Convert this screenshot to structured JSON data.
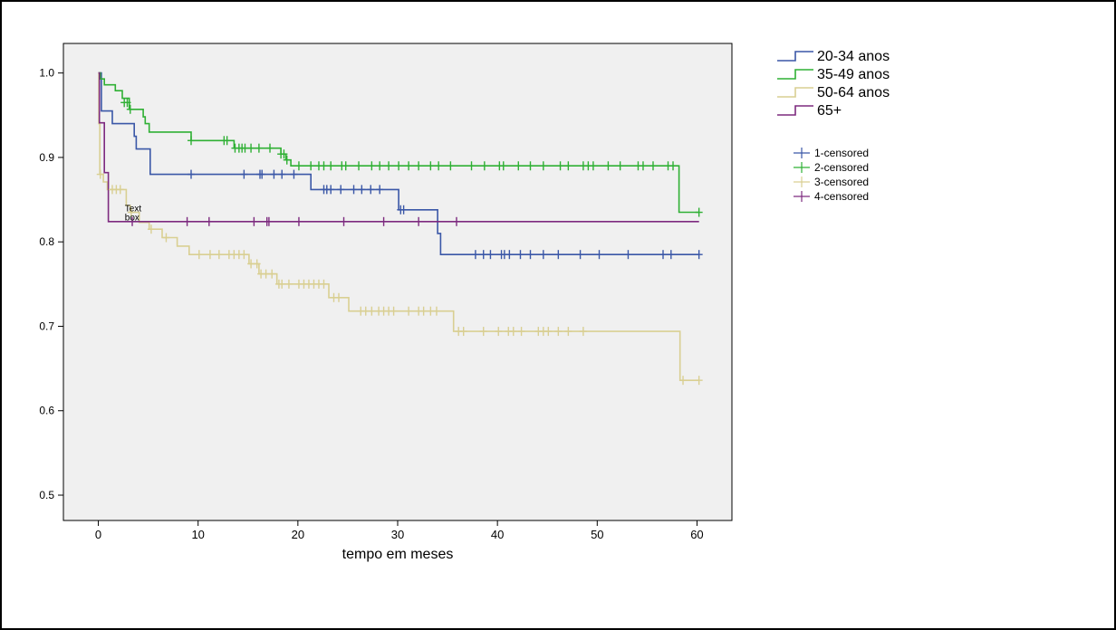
{
  "chart_data": {
    "type": "line",
    "step": true,
    "title": "",
    "xlabel": "tempo em meses",
    "ylabel": "",
    "xlim": [
      -3.5,
      63.5
    ],
    "ylim": [
      0.47,
      1.035
    ],
    "xticks": [
      0,
      10,
      20,
      30,
      40,
      50,
      60
    ],
    "yticks": [
      0.5,
      0.6,
      0.7,
      0.8,
      0.9,
      1.0
    ],
    "ytick_labels": [
      "0.5",
      "0.6",
      "0.7",
      "0.8",
      "0.9",
      "1.0"
    ],
    "grid": false,
    "plot_background": "#f0f0f0",
    "legend_position": "top-right outside plot",
    "annotation": {
      "text_lines": [
        "Text",
        "box"
      ],
      "x": 3.2,
      "y": 0.823
    },
    "series": [
      {
        "name": "20-34 anos",
        "censor_label": "1-censored",
        "color": "#3a57a7",
        "steps": [
          [
            0,
            1.0
          ],
          [
            0.3,
            0.955
          ],
          [
            1.4,
            0.94
          ],
          [
            3.6,
            0.925
          ],
          [
            3.8,
            0.91
          ],
          [
            5.2,
            0.88
          ],
          [
            21.3,
            0.862
          ],
          [
            30.1,
            0.838
          ],
          [
            34,
            0.81
          ],
          [
            34.3,
            0.785
          ],
          [
            60.2,
            0.785
          ]
        ],
        "censored": [
          [
            9.3,
            0.88
          ],
          [
            14.6,
            0.88
          ],
          [
            16.2,
            0.88
          ],
          [
            16.4,
            0.88
          ],
          [
            17.6,
            0.88
          ],
          [
            18.4,
            0.88
          ],
          [
            19.6,
            0.88
          ],
          [
            22.6,
            0.862
          ],
          [
            22.9,
            0.862
          ],
          [
            23.3,
            0.862
          ],
          [
            24.3,
            0.862
          ],
          [
            25.6,
            0.862
          ],
          [
            26.4,
            0.862
          ],
          [
            27.3,
            0.862
          ],
          [
            28.2,
            0.862
          ],
          [
            30.3,
            0.838
          ],
          [
            30.6,
            0.838
          ],
          [
            37.8,
            0.785
          ],
          [
            38.6,
            0.785
          ],
          [
            39.3,
            0.785
          ],
          [
            40.4,
            0.785
          ],
          [
            40.7,
            0.785
          ],
          [
            41.2,
            0.785
          ],
          [
            42.3,
            0.785
          ],
          [
            43.3,
            0.785
          ],
          [
            44.6,
            0.785
          ],
          [
            46.1,
            0.785
          ],
          [
            48.3,
            0.785
          ],
          [
            50.2,
            0.785
          ],
          [
            53.1,
            0.785
          ],
          [
            56.6,
            0.785
          ],
          [
            57.4,
            0.785
          ],
          [
            60.2,
            0.785
          ]
        ]
      },
      {
        "name": "35-49 anos",
        "censor_label": "2-censored",
        "color": "#2fb034",
        "steps": [
          [
            0,
            1.0
          ],
          [
            0.2,
            0.993
          ],
          [
            0.6,
            0.986
          ],
          [
            1.7,
            0.979
          ],
          [
            2.4,
            0.97
          ],
          [
            3.1,
            0.957
          ],
          [
            4.5,
            0.948
          ],
          [
            4.7,
            0.94
          ],
          [
            5.1,
            0.93
          ],
          [
            9.3,
            0.92
          ],
          [
            13.6,
            0.911
          ],
          [
            18.3,
            0.904
          ],
          [
            18.8,
            0.897
          ],
          [
            19.3,
            0.89
          ],
          [
            58.2,
            0.835
          ],
          [
            60.2,
            0.835
          ]
        ],
        "censored": [
          [
            2.6,
            0.965
          ],
          [
            2.9,
            0.965
          ],
          [
            3.2,
            0.957
          ],
          [
            9.3,
            0.92
          ],
          [
            12.6,
            0.92
          ],
          [
            12.9,
            0.92
          ],
          [
            13.7,
            0.911
          ],
          [
            14.1,
            0.911
          ],
          [
            14.4,
            0.911
          ],
          [
            14.7,
            0.911
          ],
          [
            15.3,
            0.911
          ],
          [
            16.1,
            0.911
          ],
          [
            17.2,
            0.911
          ],
          [
            18.3,
            0.904
          ],
          [
            18.6,
            0.904
          ],
          [
            18.9,
            0.897
          ],
          [
            20.1,
            0.89
          ],
          [
            21.3,
            0.89
          ],
          [
            22.1,
            0.89
          ],
          [
            22.6,
            0.89
          ],
          [
            23.3,
            0.89
          ],
          [
            24.4,
            0.89
          ],
          [
            24.8,
            0.89
          ],
          [
            26.1,
            0.89
          ],
          [
            27.4,
            0.89
          ],
          [
            28.2,
            0.89
          ],
          [
            29.1,
            0.89
          ],
          [
            30.1,
            0.89
          ],
          [
            31.1,
            0.89
          ],
          [
            32.1,
            0.89
          ],
          [
            33.3,
            0.89
          ],
          [
            34.1,
            0.89
          ],
          [
            35.3,
            0.89
          ],
          [
            37.4,
            0.89
          ],
          [
            38.7,
            0.89
          ],
          [
            40.2,
            0.89
          ],
          [
            40.6,
            0.89
          ],
          [
            42.1,
            0.89
          ],
          [
            43.3,
            0.89
          ],
          [
            44.6,
            0.89
          ],
          [
            46.3,
            0.89
          ],
          [
            47.1,
            0.89
          ],
          [
            48.6,
            0.89
          ],
          [
            49.1,
            0.89
          ],
          [
            49.6,
            0.89
          ],
          [
            51.1,
            0.89
          ],
          [
            52.3,
            0.89
          ],
          [
            54.1,
            0.89
          ],
          [
            54.6,
            0.89
          ],
          [
            55.6,
            0.89
          ],
          [
            57.1,
            0.89
          ],
          [
            57.6,
            0.89
          ],
          [
            60.2,
            0.835
          ]
        ]
      },
      {
        "name": "50-64 anos",
        "censor_label": "3-censored",
        "color": "#d9cf92",
        "steps": [
          [
            0,
            1.0
          ],
          [
            0.05,
            0.94
          ],
          [
            0.15,
            0.88
          ],
          [
            0.5,
            0.871
          ],
          [
            0.9,
            0.862
          ],
          [
            2.8,
            0.843
          ],
          [
            3.2,
            0.835
          ],
          [
            4.1,
            0.823
          ],
          [
            5.1,
            0.815
          ],
          [
            6.4,
            0.805
          ],
          [
            7.9,
            0.795
          ],
          [
            9.1,
            0.785
          ],
          [
            15.1,
            0.774
          ],
          [
            16.1,
            0.762
          ],
          [
            17.9,
            0.75
          ],
          [
            23.1,
            0.734
          ],
          [
            25.1,
            0.718
          ],
          [
            35.6,
            0.694
          ],
          [
            58.3,
            0.636
          ],
          [
            60.2,
            0.636
          ]
        ],
        "censored": [
          [
            0.2,
            0.88
          ],
          [
            1.4,
            0.862
          ],
          [
            1.8,
            0.862
          ],
          [
            2.2,
            0.862
          ],
          [
            3.3,
            0.835
          ],
          [
            5.3,
            0.815
          ],
          [
            6.8,
            0.805
          ],
          [
            10.1,
            0.785
          ],
          [
            11.2,
            0.785
          ],
          [
            12.1,
            0.785
          ],
          [
            13.1,
            0.785
          ],
          [
            13.6,
            0.785
          ],
          [
            14.1,
            0.785
          ],
          [
            14.6,
            0.785
          ],
          [
            15.3,
            0.774
          ],
          [
            15.9,
            0.774
          ],
          [
            16.3,
            0.762
          ],
          [
            16.8,
            0.762
          ],
          [
            17.4,
            0.762
          ],
          [
            18.1,
            0.75
          ],
          [
            18.4,
            0.75
          ],
          [
            19.1,
            0.75
          ],
          [
            20.1,
            0.75
          ],
          [
            20.6,
            0.75
          ],
          [
            21.1,
            0.75
          ],
          [
            21.6,
            0.75
          ],
          [
            22.1,
            0.75
          ],
          [
            22.6,
            0.75
          ],
          [
            23.6,
            0.734
          ],
          [
            24.1,
            0.734
          ],
          [
            26.3,
            0.718
          ],
          [
            26.8,
            0.718
          ],
          [
            27.4,
            0.718
          ],
          [
            28.1,
            0.718
          ],
          [
            28.6,
            0.718
          ],
          [
            29.1,
            0.718
          ],
          [
            29.6,
            0.718
          ],
          [
            31.1,
            0.718
          ],
          [
            32.1,
            0.718
          ],
          [
            32.6,
            0.718
          ],
          [
            33.3,
            0.718
          ],
          [
            33.9,
            0.718
          ],
          [
            36.1,
            0.694
          ],
          [
            36.6,
            0.694
          ],
          [
            38.6,
            0.694
          ],
          [
            40.1,
            0.694
          ],
          [
            41.1,
            0.694
          ],
          [
            41.6,
            0.694
          ],
          [
            42.4,
            0.694
          ],
          [
            44.1,
            0.694
          ],
          [
            44.6,
            0.694
          ],
          [
            45.1,
            0.694
          ],
          [
            46.1,
            0.694
          ],
          [
            47.1,
            0.694
          ],
          [
            48.6,
            0.694
          ],
          [
            58.6,
            0.636
          ],
          [
            60.2,
            0.636
          ]
        ]
      },
      {
        "name": "65+",
        "censor_label": "4-censored",
        "color": "#7d2a7f",
        "steps": [
          [
            0,
            1.0
          ],
          [
            0.1,
            0.941
          ],
          [
            0.6,
            0.882
          ],
          [
            1.0,
            0.824
          ],
          [
            60.2,
            0.824
          ]
        ],
        "censored": [
          [
            3.4,
            0.824
          ],
          [
            8.9,
            0.824
          ],
          [
            11.1,
            0.824
          ],
          [
            15.6,
            0.824
          ],
          [
            16.9,
            0.824
          ],
          [
            17.1,
            0.824
          ],
          [
            20.1,
            0.824
          ],
          [
            24.6,
            0.824
          ],
          [
            28.6,
            0.824
          ],
          [
            32.1,
            0.824
          ],
          [
            35.9,
            0.824
          ]
        ]
      }
    ]
  }
}
